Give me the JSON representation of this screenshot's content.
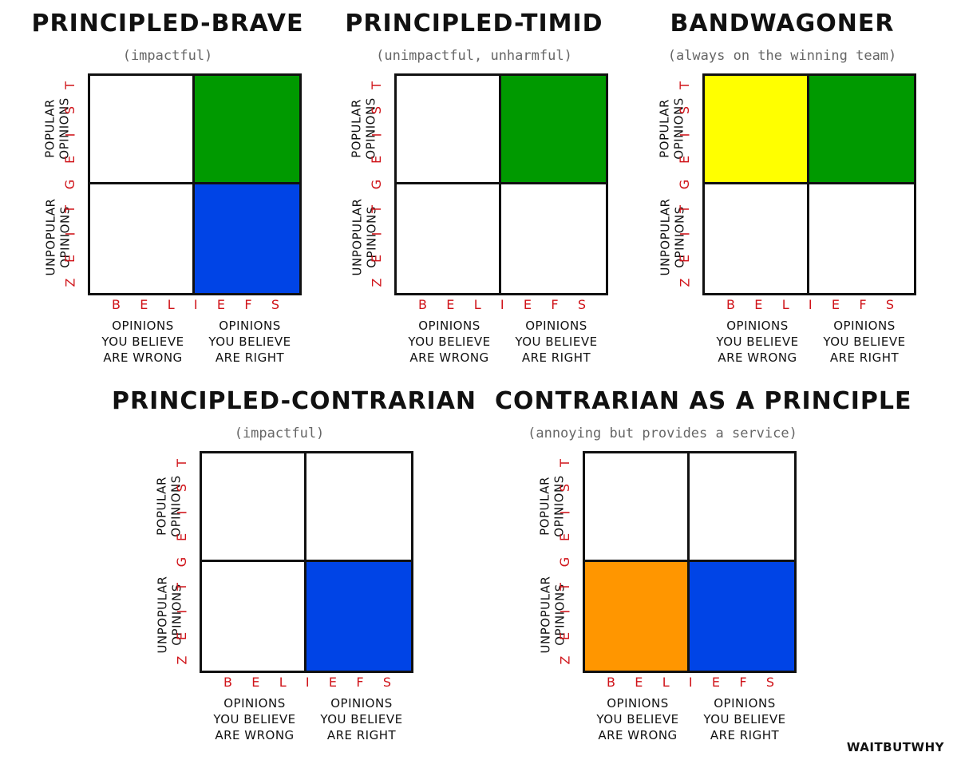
{
  "colors": {
    "green": "#009a00",
    "blue": "#0044e6",
    "yellow": "#ffff00",
    "orange": "#ff9600",
    "white": "#ffffff",
    "accent_red": "#d0141a"
  },
  "axis": {
    "zeitgeist_letters": [
      "Z",
      "E",
      "I",
      "T",
      "G",
      "E",
      "I",
      "S",
      "T"
    ],
    "beliefs_letters": [
      "B",
      "E",
      "L",
      "I",
      "E",
      "F",
      "S"
    ],
    "row_top": [
      "POPULAR",
      "OPINIONS"
    ],
    "row_bottom": [
      "UNPOPULAR",
      "OPINIONS"
    ],
    "col_left": [
      "OPINIONS",
      "YOU BELIEVE",
      "ARE WRONG"
    ],
    "col_right": [
      "OPINIONS",
      "YOU BELIEVE",
      "ARE RIGHT"
    ]
  },
  "panels": [
    {
      "title": "PRINCIPLED-BRAVE",
      "subtitle": "(impactful)",
      "cells": {
        "tl": "white",
        "tr": "green",
        "bl": "white",
        "br": "blue"
      }
    },
    {
      "title": "PRINCIPLED-TIMID",
      "subtitle": "(unimpactful, unharmful)",
      "cells": {
        "tl": "white",
        "tr": "green",
        "bl": "white",
        "br": "white"
      }
    },
    {
      "title": "BANDWAGONER",
      "subtitle": "(always on the winning team)",
      "cells": {
        "tl": "yellow",
        "tr": "green",
        "bl": "white",
        "br": "white"
      }
    },
    {
      "title": "PRINCIPLED-CONTRARIAN",
      "subtitle": "(impactful)",
      "cells": {
        "tl": "white",
        "tr": "white",
        "bl": "white",
        "br": "blue"
      }
    },
    {
      "title": "CONTRARIAN AS A PRINCIPLE",
      "subtitle": "(annoying but provides a service)",
      "cells": {
        "tl": "white",
        "tr": "white",
        "bl": "orange",
        "br": "blue"
      }
    }
  ],
  "logo": "WAITBUTWHY"
}
